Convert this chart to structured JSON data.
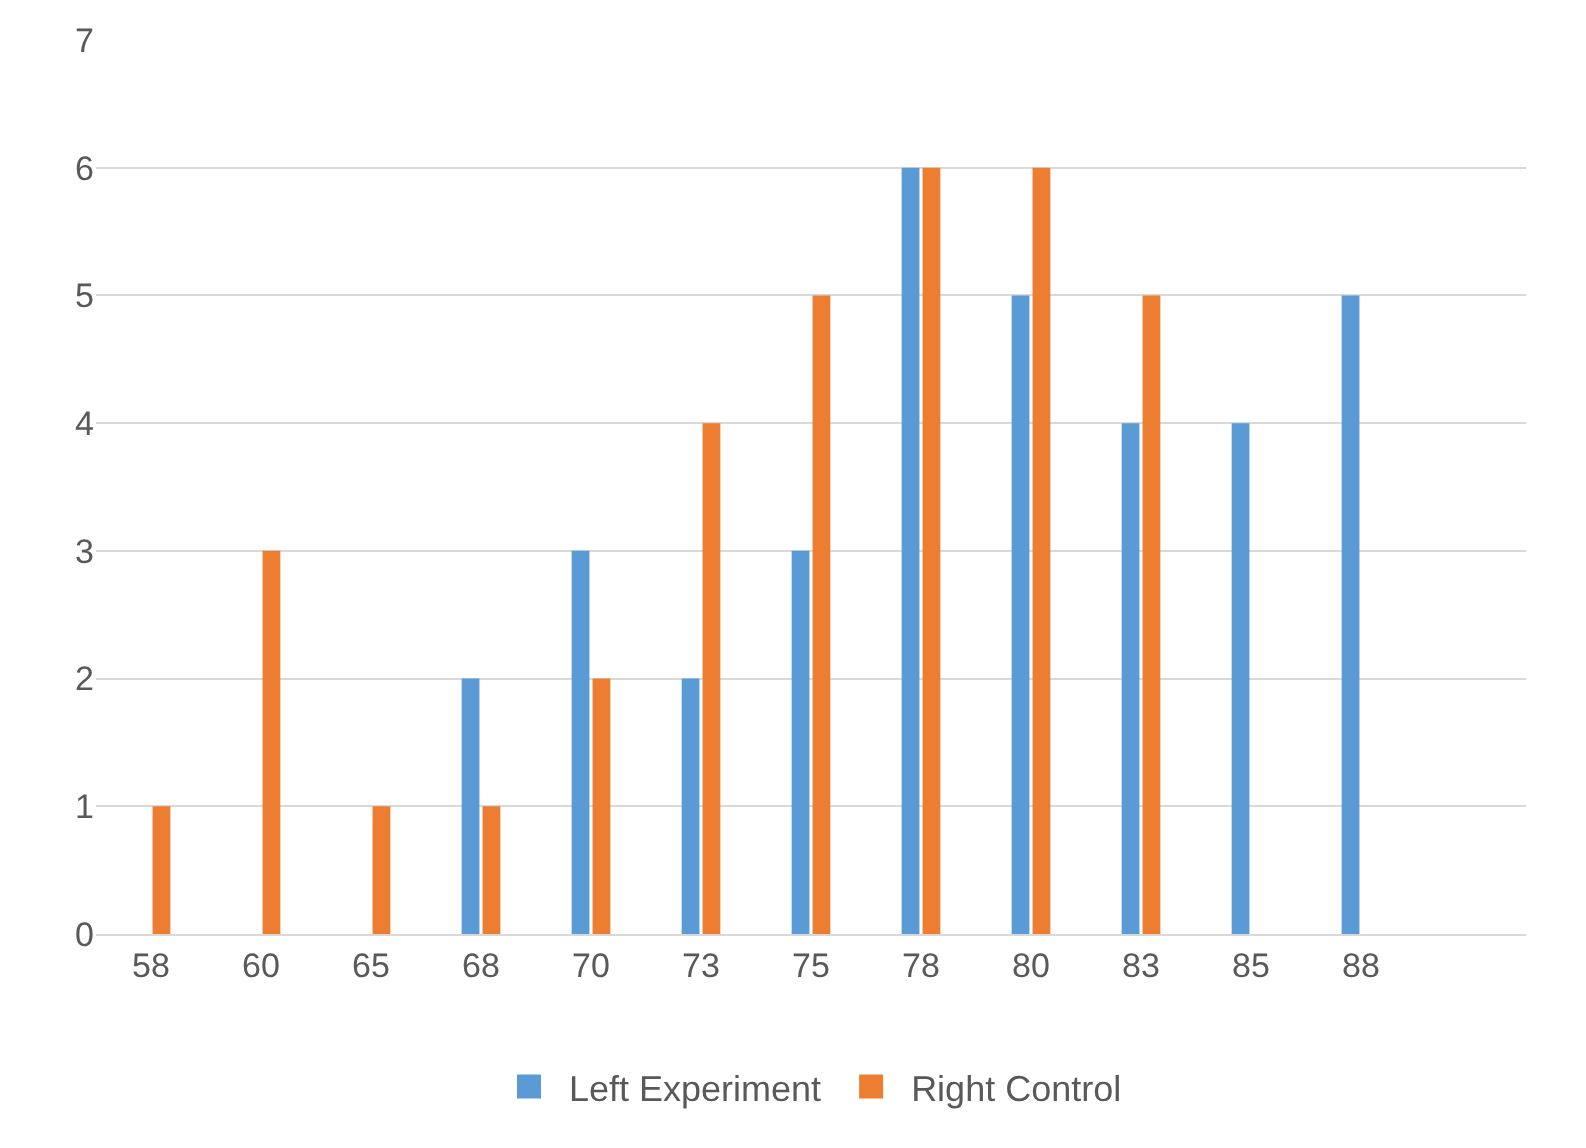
{
  "chart_data": {
    "type": "bar",
    "categories": [
      "58",
      "60",
      "65",
      "68",
      "70",
      "73",
      "75",
      "78",
      "80",
      "83",
      "85",
      "88",
      null
    ],
    "series": [
      {
        "name": "Left Experiment",
        "color": "#5b9bd5",
        "values": [
          0,
          0,
          0,
          2,
          3,
          2,
          3,
          6,
          5,
          4,
          4,
          5,
          null
        ]
      },
      {
        "name": "Right Control",
        "color": "#ed7d31",
        "values": [
          1,
          3,
          1,
          1,
          2,
          4,
          5,
          6,
          6,
          5,
          0,
          0,
          null
        ]
      }
    ],
    "ylim": [
      0,
      7
    ],
    "yticks": [
      0,
      1,
      2,
      3,
      4,
      5,
      6,
      7
    ],
    "grid": "y",
    "legend": "bottom"
  }
}
